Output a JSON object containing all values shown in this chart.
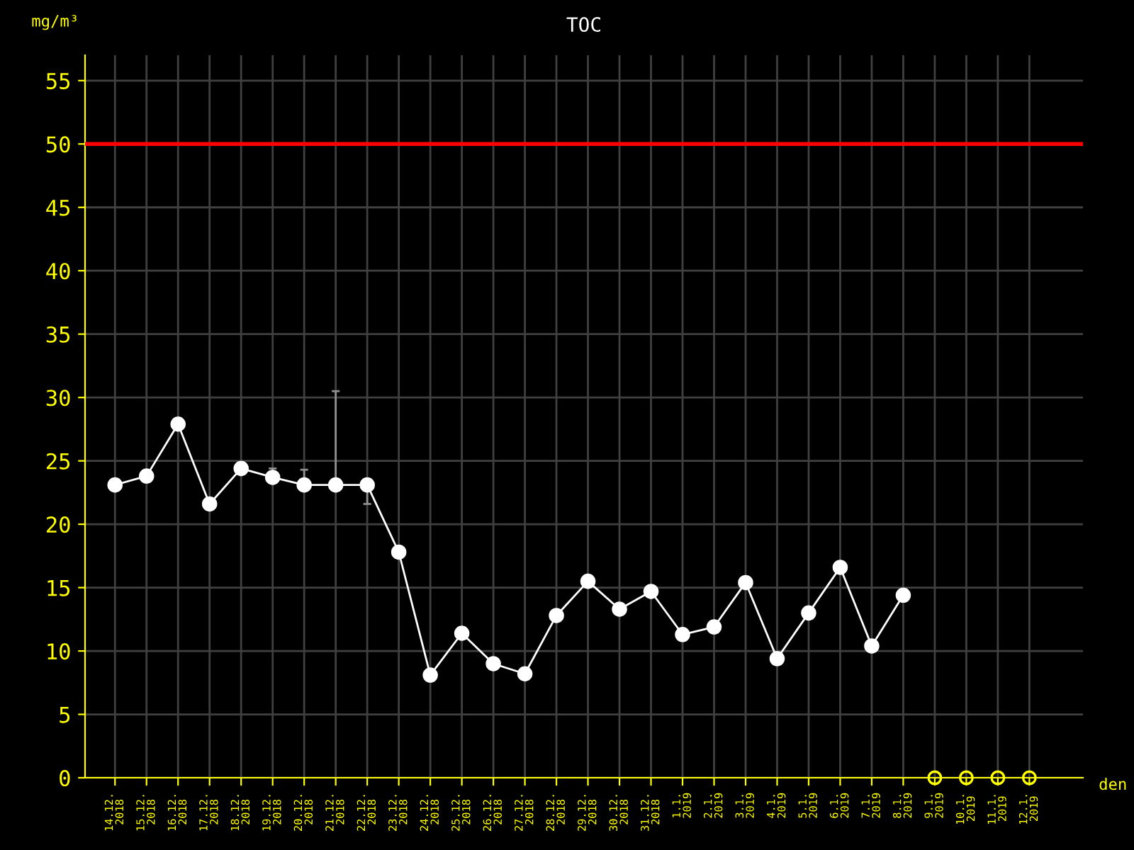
{
  "chart_data": {
    "type": "line",
    "title": "TOC",
    "xlabel": "den",
    "ylabel": "mg/m³",
    "categories": [
      "14.12.\n2018",
      "15.12.\n2018",
      "16.12.\n2018",
      "17.12.\n2018",
      "18.12.\n2018",
      "19.12.\n2018",
      "20.12.\n2018",
      "21.12.\n2018",
      "22.12.\n2018",
      "23.12.\n2018",
      "24.12.\n2018",
      "25.12.\n2018",
      "26.12.\n2018",
      "27.12.\n2018",
      "28.12.\n2018",
      "29.12.\n2018",
      "30.12.\n2018",
      "31.12.\n2018",
      "1.1.\n2019",
      "2.1.\n2019",
      "3.1.\n2019",
      "4.1.\n2019",
      "5.1.\n2019",
      "6.1.\n2019",
      "7.1.\n2019",
      "8.1.\n2019",
      "9.1.\n2019",
      "10.1.\n2019",
      "11.1.\n2019",
      "12.1.\n2019"
    ],
    "series": [
      {
        "color": "#ffffff",
        "marker": "circle",
        "values": [
          23.1,
          23.8,
          27.9,
          21.6,
          24.4,
          23.7,
          23.1,
          23.1,
          23.1,
          17.8,
          8.1,
          11.4,
          9.0,
          8.2,
          12.8,
          15.5,
          13.3,
          14.7,
          11.3,
          11.9,
          15.4,
          9.4,
          13.0,
          16.6,
          10.4,
          14.4,
          null,
          null,
          null,
          null
        ],
        "errors": [
          null,
          null,
          null,
          null,
          null,
          [
            23.7,
            24.4
          ],
          [
            23.1,
            24.3
          ],
          [
            23.1,
            30.5
          ],
          [
            21.6,
            23.1
          ],
          null,
          null,
          null,
          null,
          null,
          null,
          null,
          null,
          null,
          null,
          null,
          null,
          null,
          null,
          null,
          null,
          null,
          null,
          null,
          null,
          null
        ]
      },
      {
        "type": "scatter",
        "color": "#ffff00",
        "marker": "circle",
        "values": [
          null,
          null,
          null,
          null,
          null,
          null,
          null,
          null,
          null,
          null,
          null,
          null,
          null,
          null,
          null,
          null,
          null,
          null,
          null,
          null,
          null,
          null,
          null,
          null,
          null,
          null,
          0,
          0,
          0,
          0
        ]
      }
    ],
    "ylim": [
      0,
      57
    ],
    "yticks": [
      0,
      5,
      10,
      15,
      20,
      25,
      30,
      35,
      40,
      45,
      50,
      55
    ],
    "ref_lines": [
      {
        "axis": "y",
        "value": 50,
        "color": "#ff0000",
        "line_style": "solid"
      }
    ],
    "grid": true
  }
}
